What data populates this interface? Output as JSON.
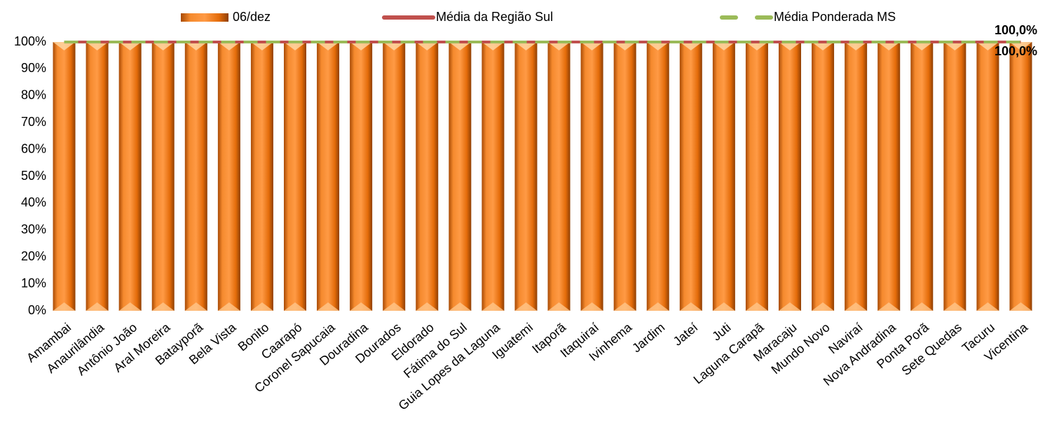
{
  "chart_data": {
    "type": "bar",
    "categories": [
      "Amambai",
      "Anaurilândia",
      "Antônio João",
      "Aral Moreira",
      "Batayporã",
      "Bela Vista",
      "Bonito",
      "Caarapó",
      "Coronel Sapucaia",
      "Douradina",
      "Dourados",
      "Eldorado",
      "Fátima do Sul",
      "Guia Lopes da Laguna",
      "Iguatemi",
      "Itaporã",
      "Itaquiraí",
      "Ivinhema",
      "Jardim",
      "Jateí",
      "Juti",
      "Laguna Carapã",
      "Maracaju",
      "Mundo Novo",
      "Naviraí",
      "Nova Andradina",
      "Ponta Porã",
      "Sete Quedas",
      "Tacuru",
      "Vicentina"
    ],
    "series": [
      {
        "name": "06/dez",
        "type": "bar",
        "color": "#e46c0a",
        "values": [
          100,
          100,
          100,
          100,
          100,
          100,
          100,
          100,
          100,
          100,
          100,
          100,
          100,
          100,
          100,
          100,
          100,
          100,
          100,
          100,
          100,
          100,
          100,
          100,
          100,
          100,
          100,
          100,
          100,
          100
        ]
      },
      {
        "name": "Média da Região Sul",
        "type": "line",
        "color": "#c0504d",
        "values": [
          100,
          100,
          100,
          100,
          100,
          100,
          100,
          100,
          100,
          100,
          100,
          100,
          100,
          100,
          100,
          100,
          100,
          100,
          100,
          100,
          100,
          100,
          100,
          100,
          100,
          100,
          100,
          100,
          100,
          100
        ],
        "value_labels": [
          null,
          null,
          null,
          null,
          null,
          null,
          null,
          null,
          null,
          null,
          null,
          null,
          null,
          null,
          null,
          null,
          null,
          null,
          null,
          null,
          null,
          null,
          null,
          null,
          null,
          null,
          null,
          null,
          null,
          "100,0%"
        ]
      },
      {
        "name": "Média Ponderada MS",
        "type": "line",
        "dashed": true,
        "color": "#9bbb59",
        "values": [
          100,
          100,
          100,
          100,
          100,
          100,
          100,
          100,
          100,
          100,
          100,
          100,
          100,
          100,
          100,
          100,
          100,
          100,
          100,
          100,
          100,
          100,
          100,
          100,
          100,
          100,
          100,
          100,
          100,
          100
        ],
        "value_labels": [
          null,
          null,
          null,
          null,
          null,
          null,
          null,
          null,
          null,
          null,
          null,
          null,
          null,
          null,
          null,
          null,
          null,
          null,
          null,
          null,
          null,
          null,
          null,
          null,
          null,
          null,
          null,
          null,
          null,
          "100,0%"
        ]
      }
    ],
    "ylim": [
      0,
      100
    ],
    "yticks": [
      {
        "value": 0,
        "label": "0%"
      },
      {
        "value": 10,
        "label": "10%"
      },
      {
        "value": 20,
        "label": "20%"
      },
      {
        "value": 30,
        "label": "30%"
      },
      {
        "value": 40,
        "label": "40%"
      },
      {
        "value": 50,
        "label": "50%"
      },
      {
        "value": 60,
        "label": "60%"
      },
      {
        "value": 70,
        "label": "70%"
      },
      {
        "value": 80,
        "label": "80%"
      },
      {
        "value": 90,
        "label": "90%"
      },
      {
        "value": 100,
        "label": "100%"
      }
    ],
    "legend": "top"
  }
}
